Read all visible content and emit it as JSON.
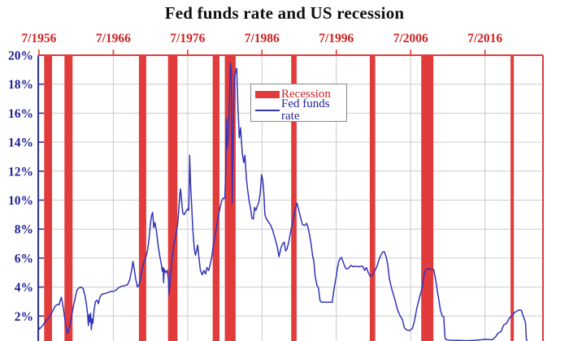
{
  "chart_data": {
    "type": "line",
    "title": "Fed funds rate and US recession",
    "x_axis": {
      "position": "top",
      "tick_years": [
        1956.5,
        1966.5,
        1976.5,
        1986.5,
        1996.5,
        2006.5,
        2016.5
      ],
      "tick_labels": [
        "7/1956",
        "7/1966",
        "7/1976",
        "7/1986",
        "7/1996",
        "7/2006",
        "7/2016"
      ],
      "year_min": 1956.4,
      "year_max": 2024.3,
      "grid": true
    },
    "y_axis": {
      "tick_pcts": [
        20,
        18,
        16,
        14,
        12,
        10,
        8,
        6,
        4,
        2
      ],
      "tick_labels": [
        "20%",
        "18%",
        "16%",
        "14%",
        "12%",
        "10%",
        "8%",
        "6%",
        "4%",
        "2%"
      ],
      "pct_top": 20,
      "pct_bottom_visible": 0.3,
      "grid": true
    },
    "legend": [
      {
        "label": "Recession",
        "type": "bar",
        "color": "#e23b3b"
      },
      {
        "label": "Fed funds rate",
        "type": "line",
        "color": "#3333bb"
      }
    ],
    "recessions": [
      {
        "start": 1957.2,
        "end": 1958.26
      },
      {
        "start": 1959.93,
        "end": 1961.02
      },
      {
        "start": 1969.95,
        "end": 1970.93
      },
      {
        "start": 1973.86,
        "end": 1975.13
      },
      {
        "start": 1979.87,
        "end": 1980.78
      },
      {
        "start": 1981.5,
        "end": 1982.96
      },
      {
        "start": 1990.43,
        "end": 1991.16
      },
      {
        "start": 2001.0,
        "end": 2001.73
      },
      {
        "start": 2007.92,
        "end": 2009.56
      },
      {
        "start": 2019.94,
        "end": 2020.38
      }
    ],
    "fed_funds_series": [
      [
        1956.4,
        1.35
      ],
      [
        1956.55,
        1.1
      ],
      [
        1956.75,
        1.2
      ],
      [
        1957.0,
        1.35
      ],
      [
        1957.25,
        1.55
      ],
      [
        1957.5,
        1.7
      ],
      [
        1957.75,
        1.85
      ],
      [
        1958.0,
        2.0
      ],
      [
        1958.25,
        2.25
      ],
      [
        1958.5,
        2.5
      ],
      [
        1958.7,
        2.7
      ],
      [
        1959.0,
        2.8
      ],
      [
        1959.2,
        2.78
      ],
      [
        1959.5,
        3.3
      ],
      [
        1959.7,
        2.8
      ],
      [
        1959.9,
        2.1
      ],
      [
        1960.1,
        1.4
      ],
      [
        1960.35,
        0.8
      ],
      [
        1960.6,
        1.25
      ],
      [
        1960.85,
        1.9
      ],
      [
        1961.1,
        2.6
      ],
      [
        1961.35,
        3.2
      ],
      [
        1961.6,
        3.8
      ],
      [
        1961.9,
        3.95
      ],
      [
        1962.15,
        4.0
      ],
      [
        1962.45,
        3.9
      ],
      [
        1962.7,
        3.4
      ],
      [
        1962.9,
        2.8
      ],
      [
        1963.05,
        2.1
      ],
      [
        1963.15,
        1.35
      ],
      [
        1963.25,
        2.1
      ],
      [
        1963.35,
        1.6
      ],
      [
        1963.45,
        2.2
      ],
      [
        1963.55,
        1.05
      ],
      [
        1963.65,
        1.8
      ],
      [
        1963.75,
        1.5
      ],
      [
        1963.9,
        2.35
      ],
      [
        1964.1,
        3.0
      ],
      [
        1964.3,
        3.1
      ],
      [
        1964.5,
        2.85
      ],
      [
        1964.7,
        3.3
      ],
      [
        1964.95,
        3.5
      ],
      [
        1965.3,
        3.55
      ],
      [
        1965.7,
        3.6
      ],
      [
        1966.1,
        3.7
      ],
      [
        1966.5,
        3.7
      ],
      [
        1966.9,
        3.8
      ],
      [
        1967.2,
        3.95
      ],
      [
        1967.6,
        4.05
      ],
      [
        1968.0,
        4.1
      ],
      [
        1968.4,
        4.15
      ],
      [
        1968.7,
        4.5
      ],
      [
        1968.95,
        5.1
      ],
      [
        1969.15,
        5.77
      ],
      [
        1969.3,
        5.3
      ],
      [
        1969.5,
        4.6
      ],
      [
        1969.75,
        4.0
      ],
      [
        1969.95,
        4.15
      ],
      [
        1970.15,
        4.6
      ],
      [
        1970.4,
        5.3
      ],
      [
        1970.65,
        5.75
      ],
      [
        1970.9,
        6.1
      ],
      [
        1971.1,
        6.5
      ],
      [
        1971.3,
        7.3
      ],
      [
        1971.5,
        8.4
      ],
      [
        1971.65,
        8.95
      ],
      [
        1971.8,
        9.15
      ],
      [
        1971.95,
        8.1
      ],
      [
        1972.1,
        8.45
      ],
      [
        1972.3,
        7.9
      ],
      [
        1972.55,
        6.8
      ],
      [
        1972.8,
        6.0
      ],
      [
        1972.95,
        5.6
      ],
      [
        1973.1,
        5.1
      ],
      [
        1973.2,
        5.35
      ],
      [
        1973.27,
        4.3
      ],
      [
        1973.35,
        5.25
      ],
      [
        1973.55,
        5.0
      ],
      [
        1973.75,
        5.15
      ],
      [
        1973.9,
        4.6
      ],
      [
        1974.0,
        3.5
      ],
      [
        1974.15,
        4.6
      ],
      [
        1974.35,
        5.7
      ],
      [
        1974.6,
        6.8
      ],
      [
        1974.8,
        7.3
      ],
      [
        1975.0,
        7.9
      ],
      [
        1975.15,
        8.3
      ],
      [
        1975.3,
        9.3
      ],
      [
        1975.45,
        10.4
      ],
      [
        1975.55,
        10.78
      ],
      [
        1975.7,
        9.9
      ],
      [
        1975.85,
        9.1
      ],
      [
        1976.05,
        9.0
      ],
      [
        1976.3,
        9.25
      ],
      [
        1976.5,
        9.4
      ],
      [
        1976.65,
        9.3
      ],
      [
        1976.77,
        13.1
      ],
      [
        1976.9,
        11.0
      ],
      [
        1977.05,
        9.5
      ],
      [
        1977.2,
        8.0
      ],
      [
        1977.4,
        6.6
      ],
      [
        1977.55,
        6.2
      ],
      [
        1977.7,
        6.5
      ],
      [
        1977.85,
        6.9
      ],
      [
        1978.0,
        6.15
      ],
      [
        1978.2,
        5.2
      ],
      [
        1978.45,
        4.85
      ],
      [
        1978.7,
        5.15
      ],
      [
        1978.9,
        4.9
      ],
      [
        1979.1,
        5.35
      ],
      [
        1979.35,
        5.15
      ],
      [
        1979.55,
        5.6
      ],
      [
        1979.75,
        6.1
      ],
      [
        1979.95,
        6.9
      ],
      [
        1980.2,
        7.6
      ],
      [
        1980.5,
        8.5
      ],
      [
        1980.8,
        9.35
      ],
      [
        1981.05,
        9.9
      ],
      [
        1981.3,
        10.15
      ],
      [
        1981.5,
        10.1
      ],
      [
        1981.62,
        12.0
      ],
      [
        1981.72,
        15.6
      ],
      [
        1981.82,
        13.6
      ],
      [
        1981.95,
        14.3
      ],
      [
        1982.1,
        16.3
      ],
      [
        1982.25,
        19.45
      ],
      [
        1982.38,
        18.9
      ],
      [
        1982.5,
        9.8
      ],
      [
        1982.62,
        14.5
      ],
      [
        1982.77,
        18.5
      ],
      [
        1982.95,
        18.8
      ],
      [
        1983.1,
        19.1
      ],
      [
        1983.28,
        16.2
      ],
      [
        1983.45,
        14.3
      ],
      [
        1983.62,
        15.0
      ],
      [
        1983.85,
        13.2
      ],
      [
        1984.05,
        12.6
      ],
      [
        1984.2,
        13.1
      ],
      [
        1984.4,
        11.5
      ],
      [
        1984.6,
        10.6
      ],
      [
        1984.78,
        9.9
      ],
      [
        1984.95,
        9.5
      ],
      [
        1985.15,
        8.75
      ],
      [
        1985.35,
        8.7
      ],
      [
        1985.5,
        9.5
      ],
      [
        1985.68,
        9.3
      ],
      [
        1985.88,
        9.6
      ],
      [
        1986.05,
        9.8
      ],
      [
        1986.25,
        10.4
      ],
      [
        1986.45,
        11.75
      ],
      [
        1986.6,
        11.4
      ],
      [
        1986.75,
        10.5
      ],
      [
        1986.9,
        9.0
      ],
      [
        1987.1,
        8.7
      ],
      [
        1987.35,
        8.5
      ],
      [
        1987.65,
        8.3
      ],
      [
        1987.95,
        7.9
      ],
      [
        1988.25,
        7.35
      ],
      [
        1988.55,
        6.8
      ],
      [
        1988.8,
        6.1
      ],
      [
        1989.05,
        6.7
      ],
      [
        1989.3,
        7.0
      ],
      [
        1989.5,
        7.1
      ],
      [
        1989.67,
        6.5
      ],
      [
        1989.85,
        6.6
      ],
      [
        1990.1,
        7.1
      ],
      [
        1990.35,
        7.8
      ],
      [
        1990.65,
        8.5
      ],
      [
        1990.95,
        9.3
      ],
      [
        1991.2,
        9.8
      ],
      [
        1991.45,
        9.3
      ],
      [
        1991.7,
        8.8
      ],
      [
        1991.95,
        8.3
      ],
      [
        1992.25,
        8.25
      ],
      [
        1992.5,
        8.4
      ],
      [
        1992.7,
        8.1
      ],
      [
        1992.9,
        7.6
      ],
      [
        1993.1,
        7.0
      ],
      [
        1993.3,
        6.2
      ],
      [
        1993.5,
        5.7
      ],
      [
        1993.65,
        4.75
      ],
      [
        1993.9,
        4.1
      ],
      [
        1994.1,
        3.95
      ],
      [
        1994.3,
        3.1
      ],
      [
        1994.5,
        2.95
      ],
      [
        1995.2,
        2.95
      ],
      [
        1995.95,
        2.95
      ],
      [
        1996.1,
        3.55
      ],
      [
        1996.3,
        4.2
      ],
      [
        1996.5,
        4.75
      ],
      [
        1996.65,
        5.3
      ],
      [
        1996.85,
        5.8
      ],
      [
        1997.05,
        6.0
      ],
      [
        1997.2,
        6.05
      ],
      [
        1997.4,
        5.75
      ],
      [
        1997.65,
        5.4
      ],
      [
        1997.85,
        5.25
      ],
      [
        1998.15,
        5.3
      ],
      [
        1998.45,
        5.5
      ],
      [
        1998.75,
        5.4
      ],
      [
        1999.1,
        5.45
      ],
      [
        1999.5,
        5.4
      ],
      [
        1999.9,
        5.45
      ],
      [
        2000.1,
        5.4
      ],
      [
        2000.3,
        5.15
      ],
      [
        2000.55,
        5.35
      ],
      [
        2000.8,
        5.0
      ],
      [
        2001.05,
        4.75
      ],
      [
        2001.35,
        4.8
      ],
      [
        2001.65,
        5.1
      ],
      [
        2001.95,
        5.4
      ],
      [
        2002.25,
        5.9
      ],
      [
        2002.5,
        6.2
      ],
      [
        2002.7,
        6.4
      ],
      [
        2002.95,
        6.45
      ],
      [
        2003.2,
        6.1
      ],
      [
        2003.4,
        5.6
      ],
      [
        2003.65,
        4.55
      ],
      [
        2004.0,
        3.8
      ],
      [
        2004.4,
        3.1
      ],
      [
        2004.75,
        2.4
      ],
      [
        2005.1,
        2.0
      ],
      [
        2005.4,
        1.75
      ],
      [
        2005.65,
        1.2
      ],
      [
        2005.95,
        1.05
      ],
      [
        2006.35,
        1.0
      ],
      [
        2006.75,
        1.15
      ],
      [
        2007.05,
        1.75
      ],
      [
        2007.35,
        2.6
      ],
      [
        2007.7,
        3.3
      ],
      [
        2008.05,
        3.95
      ],
      [
        2008.2,
        4.6
      ],
      [
        2008.4,
        5.1
      ],
      [
        2008.7,
        5.25
      ],
      [
        2009.2,
        5.25
      ],
      [
        2009.6,
        5.2
      ],
      [
        2009.9,
        4.4
      ],
      [
        2010.1,
        3.7
      ],
      [
        2010.3,
        3.1
      ],
      [
        2010.5,
        2.4
      ],
      [
        2010.75,
        2.0
      ],
      [
        2010.95,
        1.95
      ],
      [
        2011.05,
        1.0
      ],
      [
        2011.15,
        0.45
      ],
      [
        2011.4,
        0.35
      ],
      [
        2012.0,
        0.33
      ],
      [
        2013.0,
        0.32
      ],
      [
        2014.0,
        0.3
      ],
      [
        2015.0,
        0.32
      ],
      [
        2015.8,
        0.36
      ],
      [
        2016.5,
        0.4
      ],
      [
        2017.1,
        0.37
      ],
      [
        2017.55,
        0.38
      ],
      [
        2017.9,
        0.56
      ],
      [
        2018.3,
        0.84
      ],
      [
        2018.65,
        0.92
      ],
      [
        2018.85,
        1.2
      ],
      [
        2019.05,
        1.4
      ],
      [
        2019.4,
        1.5
      ],
      [
        2019.75,
        1.85
      ],
      [
        2020.1,
        2.0
      ],
      [
        2020.5,
        2.25
      ],
      [
        2020.8,
        2.35
      ],
      [
        2021.1,
        2.42
      ],
      [
        2021.4,
        2.4
      ],
      [
        2021.6,
        2.05
      ],
      [
        2021.78,
        1.8
      ],
      [
        2021.95,
        1.55
      ],
      [
        2022.05,
        0.5
      ],
      [
        2022.2,
        0.1
      ],
      [
        2022.6,
        0.08
      ],
      [
        2023.2,
        0.08
      ],
      [
        2024.3,
        0.08
      ]
    ]
  },
  "colors": {
    "recession_red": "#e23b3b",
    "red_text": "#cc2222",
    "line_blue": "#3333bb",
    "navy_text": "#232399",
    "navy_spine": "#333399",
    "grid_gray": "#cccccc",
    "legend_border": "#898989",
    "title_black": "#111111",
    "background": "#ffffff"
  }
}
